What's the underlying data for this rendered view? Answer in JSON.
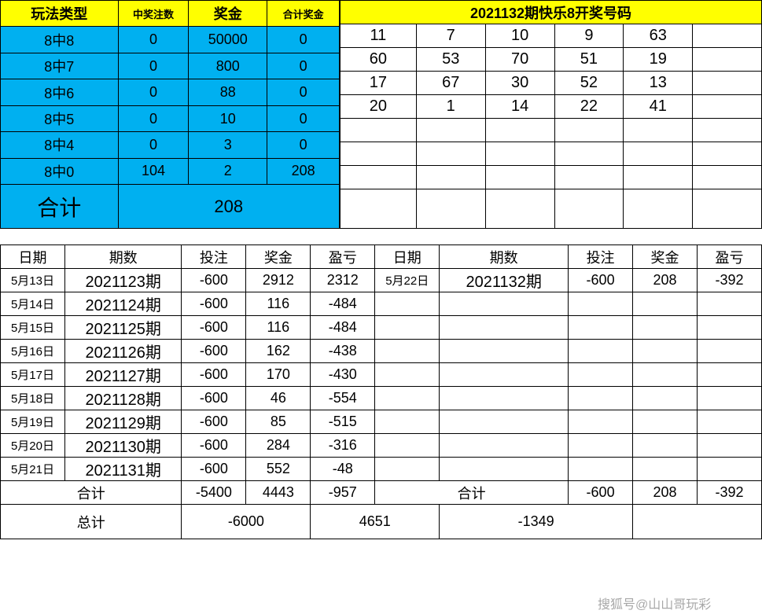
{
  "colors": {
    "header_bg": "#ffff00",
    "body_bg": "#00b0f0",
    "border": "#000000",
    "page_bg": "#ffffff"
  },
  "prize": {
    "headers": [
      "玩法类型",
      "中奖注数",
      "奖金",
      "合计奖金"
    ],
    "rows": [
      {
        "type": "8中8",
        "count": "0",
        "prize": "50000",
        "total": "0"
      },
      {
        "type": "8中7",
        "count": "0",
        "prize": "800",
        "total": "0"
      },
      {
        "type": "8中6",
        "count": "0",
        "prize": "88",
        "total": "0"
      },
      {
        "type": "8中5",
        "count": "0",
        "prize": "10",
        "total": "0"
      },
      {
        "type": "8中4",
        "count": "0",
        "prize": "3",
        "total": "0"
      },
      {
        "type": "8中0",
        "count": "104",
        "prize": "2",
        "total": "208"
      }
    ],
    "sum_label": "合计",
    "sum_value": "208"
  },
  "draw": {
    "title": "2021132期快乐8开奖号码",
    "grid": [
      [
        "11",
        "7",
        "10",
        "9",
        "63",
        ""
      ],
      [
        "60",
        "53",
        "70",
        "51",
        "19",
        ""
      ],
      [
        "17",
        "67",
        "30",
        "52",
        "13",
        ""
      ],
      [
        "20",
        "1",
        "14",
        "22",
        "41",
        ""
      ],
      [
        "",
        "",
        "",
        "",
        "",
        ""
      ],
      [
        "",
        "",
        "",
        "",
        "",
        ""
      ],
      [
        "",
        "",
        "",
        "",
        "",
        ""
      ],
      [
        "",
        "",
        "",
        "",
        "",
        ""
      ]
    ]
  },
  "history": {
    "headers": [
      "日期",
      "期数",
      "投注",
      "奖金",
      "盈亏",
      "日期",
      "期数",
      "投注",
      "奖金",
      "盈亏"
    ],
    "rows": [
      [
        "5月13日",
        "2021123期",
        "-600",
        "2912",
        "2312",
        "5月22日",
        "2021132期",
        "-600",
        "208",
        "-392"
      ],
      [
        "5月14日",
        "2021124期",
        "-600",
        "116",
        "-484",
        "",
        "",
        "",
        "",
        ""
      ],
      [
        "5月15日",
        "2021125期",
        "-600",
        "116",
        "-484",
        "",
        "",
        "",
        "",
        ""
      ],
      [
        "5月16日",
        "2021126期",
        "-600",
        "162",
        "-438",
        "",
        "",
        "",
        "",
        ""
      ],
      [
        "5月17日",
        "2021127期",
        "-600",
        "170",
        "-430",
        "",
        "",
        "",
        "",
        ""
      ],
      [
        "5月18日",
        "2021128期",
        "-600",
        "46",
        "-554",
        "",
        "",
        "",
        "",
        ""
      ],
      [
        "5月19日",
        "2021129期",
        "-600",
        "85",
        "-515",
        "",
        "",
        "",
        "",
        ""
      ],
      [
        "5月20日",
        "2021130期",
        "-600",
        "284",
        "-316",
        "",
        "",
        "",
        "",
        ""
      ],
      [
        "5月21日",
        "2021131期",
        "-600",
        "552",
        "-48",
        "",
        "",
        "",
        "",
        ""
      ]
    ],
    "subtotal_label": "合计",
    "subtotal_left": [
      "-5400",
      "4443",
      "-957"
    ],
    "subtotal_right": [
      "-600",
      "208",
      "-392"
    ],
    "grand_label": "总计",
    "grand": [
      "-6000",
      "4651",
      "-1349"
    ]
  },
  "watermark": "搜狐号@山山哥玩彩"
}
